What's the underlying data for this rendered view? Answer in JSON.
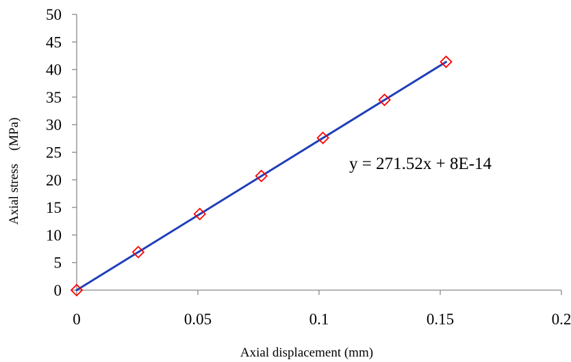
{
  "chart_data": {
    "type": "scatter",
    "title": "",
    "xlabel": "Axial displacement (mm)",
    "ylabel": "Axial stress    (MPa)",
    "xlim": [
      0,
      0.2
    ],
    "ylim": [
      0,
      50
    ],
    "x_ticks": [
      "0",
      "0.05",
      "0.1",
      "0.15",
      "0.2"
    ],
    "y_ticks": [
      "0",
      "5",
      "10",
      "15",
      "20",
      "25",
      "30",
      "35",
      "40",
      "45",
      "50"
    ],
    "grid": false,
    "legend": "none",
    "series": [
      {
        "x": [
          0,
          0.0254,
          0.0508,
          0.0762,
          0.1016,
          0.127,
          0.1524
        ],
        "y": [
          0,
          6.9,
          13.8,
          20.7,
          27.6,
          34.5,
          41.4
        ],
        "marker": "diamond",
        "marker_color": "#ff0000"
      }
    ],
    "trendline": {
      "type": "linear",
      "slope": 271.52,
      "intercept": 8e-14,
      "x_range": [
        0,
        0.1524
      ],
      "color": "#1f3fb8",
      "equation": "y = 271.52x + 8E-14"
    }
  }
}
